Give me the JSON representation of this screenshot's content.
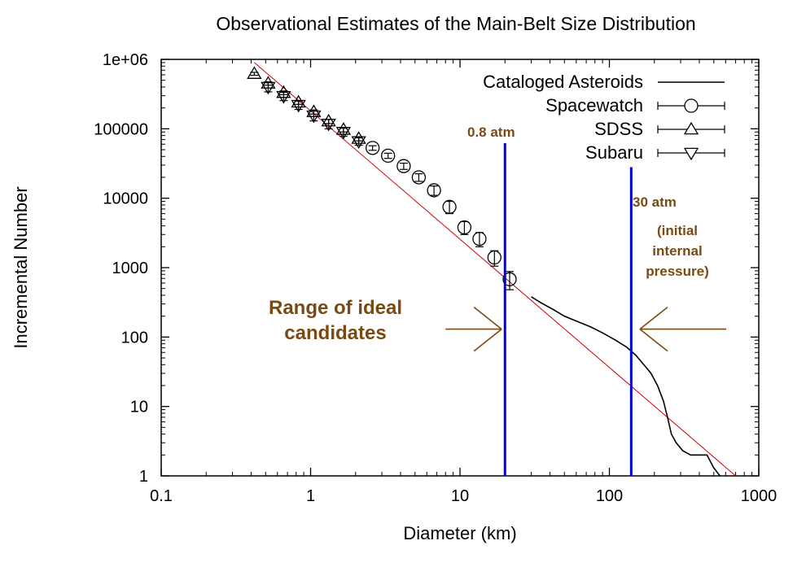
{
  "chart_data": {
    "type": "scatter",
    "title": "Observational Estimates of the Main-Belt Size Distribution",
    "xlabel": "Diameter (km)",
    "ylabel": "Incremental Number",
    "xscale": "log",
    "yscale": "log",
    "xlim": [
      0.1,
      1000
    ],
    "ylim": [
      1,
      1000000
    ],
    "x_ticks": [
      0.1,
      1,
      10,
      100,
      1000
    ],
    "x_tick_labels": [
      "0.1",
      "1",
      "10",
      "100",
      "1000"
    ],
    "y_ticks": [
      1,
      10,
      100,
      1000,
      10000,
      100000,
      1000000
    ],
    "y_tick_labels": [
      "1",
      "10",
      "100",
      "1000",
      "10000",
      "100000",
      "1e+06"
    ],
    "legend_position": "top-right",
    "series": [
      {
        "name": "Cataloged Asteroids",
        "style": "line",
        "color": "#000000",
        "x": [
          30,
          35,
          42,
          50,
          60,
          75,
          90,
          110,
          130,
          150,
          170,
          190,
          210,
          230,
          245,
          260,
          280,
          310,
          350,
          400,
          450,
          500,
          550
        ],
        "y": [
          380,
          310,
          250,
          200,
          170,
          140,
          115,
          90,
          72,
          55,
          40,
          30,
          20,
          12,
          7,
          4,
          3,
          2.3,
          2,
          2,
          2,
          1.3,
          1
        ]
      },
      {
        "name": "Spacewatch",
        "style": "circle",
        "color": "#000000",
        "x": [
          2.6,
          3.3,
          4.2,
          5.3,
          6.7,
          8.5,
          10.7,
          13.5,
          17.0,
          21.5
        ],
        "y": [
          53000,
          41000,
          29000,
          20000,
          13000,
          7500,
          3800,
          2600,
          1400,
          680
        ],
        "err_low": [
          4000,
          3500,
          3000,
          2500,
          2000,
          1500,
          800,
          600,
          350,
          200
        ],
        "err_high": [
          4000,
          3500,
          3000,
          2500,
          2000,
          1500,
          800,
          600,
          350,
          200
        ]
      },
      {
        "name": "SDSS",
        "style": "triangle-up",
        "color": "#000000",
        "x": [
          0.42,
          0.52,
          0.66,
          0.83,
          1.05,
          1.32,
          1.66,
          2.1
        ],
        "y": [
          620000,
          450000,
          330000,
          240000,
          175000,
          128000,
          97000,
          72000
        ],
        "err_low": [
          30000,
          25000,
          20000,
          15000,
          12000,
          9000,
          7000,
          5000
        ],
        "err_high": [
          30000,
          25000,
          20000,
          15000,
          12000,
          9000,
          7000,
          5000
        ]
      },
      {
        "name": "Subaru",
        "style": "triangle-down",
        "color": "#000000",
        "x": [
          0.52,
          0.66,
          0.83,
          1.05,
          1.32,
          1.66,
          2.1
        ],
        "y": [
          400000,
          295000,
          220000,
          155000,
          118000,
          90000,
          66000
        ],
        "err_low": [
          60000,
          40000,
          30000,
          25000,
          18000,
          12000,
          8000
        ],
        "err_high": [
          60000,
          40000,
          30000,
          25000,
          18000,
          12000,
          8000
        ]
      }
    ],
    "fit_line": {
      "color": "#cc0000",
      "x": [
        0.42,
        700
      ],
      "y": [
        900000,
        1
      ]
    },
    "vertical_lines": [
      {
        "x": 20,
        "y_top": 62000,
        "color": "#0000dd",
        "label": "0.8 atm"
      },
      {
        "x": 140,
        "y_top": 28000,
        "color": "#0000dd",
        "label": "30 atm"
      }
    ],
    "annotations": {
      "range_label": [
        "Range of ideal",
        "candidates"
      ],
      "pressure_note": [
        "(initial",
        "internal",
        "pressure)"
      ],
      "color": "#7a4a12",
      "left_arrow": {
        "x_from": 8,
        "x_to": 19,
        "y": 130
      },
      "right_arrow": {
        "x_from": 700,
        "x_to": 160,
        "y": 130
      }
    }
  }
}
